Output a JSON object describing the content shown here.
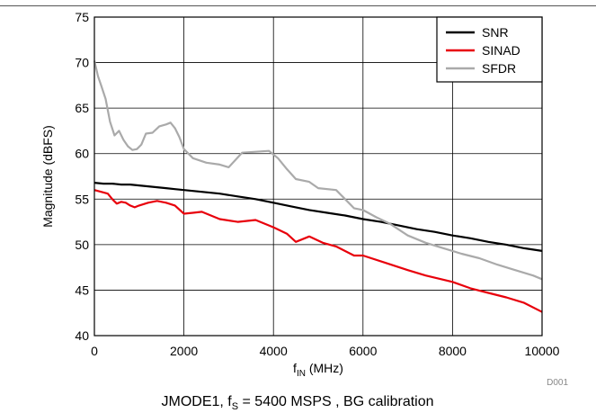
{
  "chart_data": {
    "type": "line",
    "xlabel_main": "f",
    "xlabel_sub": "IN",
    "xlabel_unit": " (MHz)",
    "ylabel": "Magnitude (dBFS)",
    "xlim": [
      0,
      10000
    ],
    "ylim": [
      40,
      75
    ],
    "xticks": [
      0,
      2000,
      4000,
      6000,
      8000,
      10000
    ],
    "yticks": [
      40,
      45,
      50,
      55,
      60,
      65,
      70,
      75
    ],
    "grid": true,
    "legend_position": "top-right",
    "series": [
      {
        "name": "SNR",
        "color": "#000000",
        "x": [
          0,
          200,
          400,
          600,
          800,
          1000,
          1200,
          1400,
          1600,
          1800,
          2000,
          2400,
          2800,
          3200,
          3600,
          4000,
          4400,
          4800,
          5200,
          5600,
          6000,
          6400,
          6800,
          7200,
          7600,
          8000,
          8400,
          8800,
          9200,
          9600,
          10000
        ],
        "y": [
          56.8,
          56.7,
          56.7,
          56.6,
          56.6,
          56.5,
          56.4,
          56.3,
          56.2,
          56.1,
          56.0,
          55.8,
          55.6,
          55.3,
          55.0,
          54.6,
          54.2,
          53.8,
          53.5,
          53.2,
          52.8,
          52.5,
          52.1,
          51.7,
          51.4,
          51.0,
          50.7,
          50.3,
          50.0,
          49.6,
          49.3
        ]
      },
      {
        "name": "SINAD",
        "color": "#e8000b",
        "x": [
          0,
          150,
          300,
          400,
          500,
          600,
          700,
          800,
          900,
          1000,
          1200,
          1400,
          1600,
          1800,
          2000,
          2200,
          2400,
          2800,
          3200,
          3600,
          4000,
          4300,
          4500,
          4800,
          5100,
          5400,
          5800,
          6000,
          6500,
          7000,
          7400,
          8000,
          8400,
          8800,
          9200,
          9600,
          10000
        ],
        "y": [
          56.0,
          55.8,
          55.6,
          55.0,
          54.5,
          54.7,
          54.6,
          54.3,
          54.1,
          54.3,
          54.6,
          54.8,
          54.6,
          54.3,
          53.4,
          53.5,
          53.6,
          52.8,
          52.5,
          52.7,
          51.9,
          51.2,
          50.3,
          50.9,
          50.2,
          49.8,
          48.8,
          48.8,
          48.0,
          47.2,
          46.6,
          45.9,
          45.2,
          44.7,
          44.2,
          43.6,
          42.6
        ]
      },
      {
        "name": "SFDR",
        "color": "#aaaaaa",
        "x": [
          0,
          80,
          150,
          250,
          350,
          450,
          550,
          650,
          750,
          850,
          950,
          1050,
          1150,
          1300,
          1450,
          1600,
          1700,
          1800,
          1900,
          2000,
          2200,
          2500,
          2800,
          3000,
          3300,
          3600,
          3900,
          4100,
          4300,
          4500,
          4800,
          5000,
          5400,
          5600,
          5800,
          6000,
          6300,
          6600,
          7000,
          7400,
          7800,
          8200,
          8600,
          9000,
          9400,
          9800,
          10000
        ],
        "y": [
          70.2,
          68.5,
          67.5,
          66.0,
          63.5,
          62.0,
          62.5,
          61.5,
          60.8,
          60.4,
          60.5,
          61.0,
          62.2,
          62.3,
          63.0,
          63.2,
          63.4,
          62.8,
          61.8,
          60.5,
          59.5,
          59.0,
          58.8,
          58.5,
          60.1,
          60.2,
          60.3,
          59.5,
          58.3,
          57.2,
          56.9,
          56.2,
          56.0,
          55.0,
          54.0,
          53.8,
          53.0,
          52.3,
          51.0,
          50.2,
          49.6,
          49.0,
          48.5,
          47.8,
          47.2,
          46.6,
          46.2
        ]
      }
    ]
  },
  "code_label": "D001",
  "caption": {
    "prefix": "JMODE1, f",
    "sub": "S",
    "suffix": " = 5400 MSPS , BG calibration"
  }
}
